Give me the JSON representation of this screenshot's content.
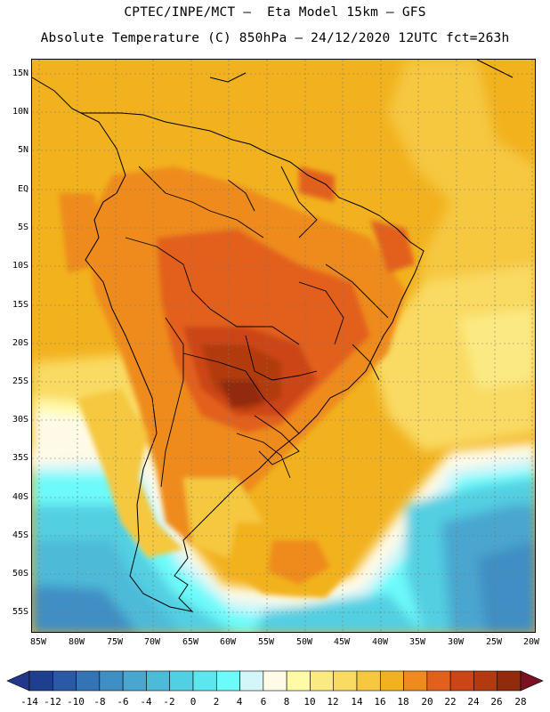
{
  "title_line1": "CPTEC/INPE/MCT –  Eta Model 15km – GFS",
  "title_line2": "Absolute Temperature (C) 850hPa – 24/12/2020 12UTC fct=263h",
  "lat_labels": [
    "15N",
    "10N",
    "5N",
    "EQ",
    "5S",
    "10S",
    "15S",
    "20S",
    "25S",
    "30S",
    "35S",
    "40S",
    "45S",
    "50S",
    "55S"
  ],
  "lon_labels": [
    "85W",
    "80W",
    "75W",
    "70W",
    "65W",
    "60W",
    "55W",
    "50W",
    "45W",
    "40W",
    "35W",
    "30W",
    "25W",
    "20W"
  ],
  "colorbar": {
    "ticks": [
      "-14",
      "-12",
      "-10",
      "-8",
      "-6",
      "-4",
      "-2",
      "0",
      "2",
      "4",
      "6",
      "8",
      "10",
      "12",
      "14",
      "16",
      "18",
      "20",
      "22",
      "24",
      "26",
      "28"
    ],
    "colors": [
      "#1d3f8e",
      "#2a5aa6",
      "#3473b4",
      "#3f8ec4",
      "#4aa6cf",
      "#4dbad8",
      "#52cfe2",
      "#5ce6ee",
      "#6dfafa",
      "#d3f6fa",
      "#fffbe6",
      "#fffaa6",
      "#fbea83",
      "#f9da62",
      "#f5c840",
      "#f2b21f",
      "#ee8b1e",
      "#e2601e",
      "#cc4516",
      "#b23a10",
      "#922a0c",
      "#762216"
    ],
    "low_color": "#23378a",
    "high_color": "#7a1022"
  }
}
